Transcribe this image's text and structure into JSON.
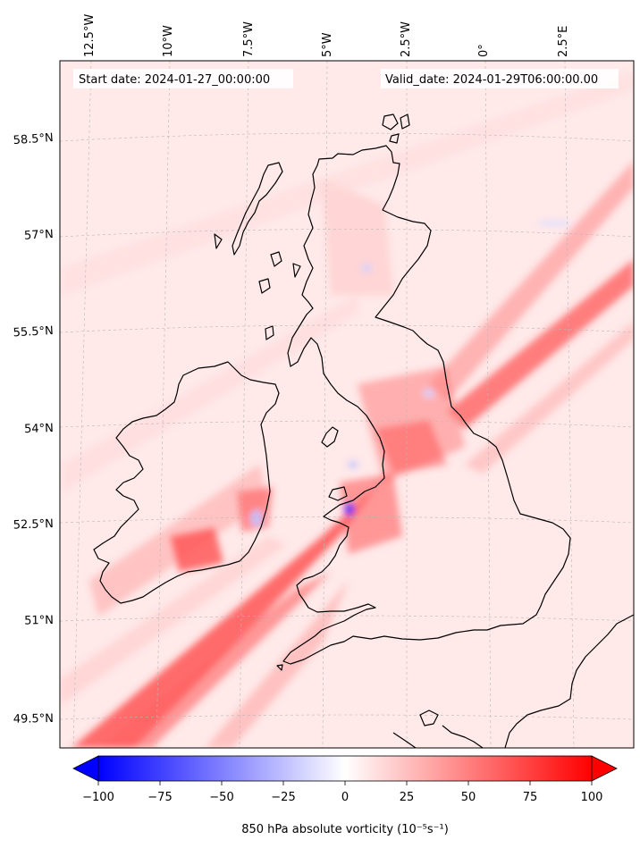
{
  "header": {
    "start_date": "Start date: 2024-01-27_00:00:00",
    "valid_date": "Valid_date: 2024-01-29T06:00:00.00"
  },
  "map": {
    "region": "British Isles",
    "lon_labels": [
      "12.5°W",
      "10°W",
      "7.5°W",
      "5°W",
      "2.5°W",
      "0°",
      "2.5°E"
    ],
    "lat_labels": [
      "58.5°N",
      "57°N",
      "55.5°N",
      "54°N",
      "52.5°N",
      "51°N",
      "49.5°N"
    ],
    "colors": {
      "negative": "#0000ff",
      "zero": "#ffffff",
      "positive": "#ff0000",
      "background_tint": "#ffe8e8",
      "coastline": "#000000"
    }
  },
  "colorbar": {
    "label": "850 hPa absolute vorticity (10⁻⁵s⁻¹)",
    "min": -100,
    "max": 100,
    "ticks": [
      "−100",
      "−75",
      "−50",
      "−25",
      "0",
      "25",
      "50",
      "75",
      "100"
    ],
    "extend": "both",
    "cmap": "bwr"
  }
}
